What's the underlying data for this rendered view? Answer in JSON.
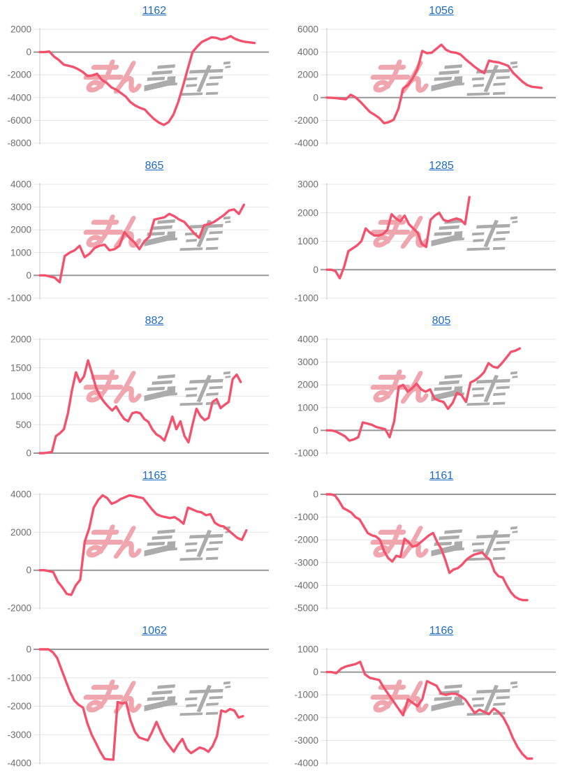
{
  "page": {
    "description": "Grid of 10 machine slump graphs, each titled by a machine number link",
    "watermark": {
      "text_pink": "みん",
      "text_gray": "レポ",
      "style": "stylized italic speed-line logo"
    }
  },
  "colors": {
    "line": "#F4516C",
    "title_link": "#1F6BC4",
    "grid_line": "#E4E4E4",
    "zero_line": "#969696",
    "axis_line": "#C9C9C9",
    "tick_label": "#6E6E6E",
    "watermark_pink": "#EFA6AF",
    "watermark_gray": "#ABABAB",
    "background": "#FFFFFF"
  },
  "chart_data": [
    {
      "type": "line",
      "title": "1162",
      "xlabel": "",
      "ylabel": "",
      "ylim": [
        -8000,
        2000
      ],
      "ystep": 2000,
      "grid": "horizontal",
      "legend": "none",
      "x_slots": 49,
      "values": [
        0,
        0,
        50,
        -400,
        -700,
        -1100,
        -1200,
        -1300,
        -1500,
        -1750,
        -2100,
        -2050,
        -1900,
        -2450,
        -2700,
        -3100,
        -3300,
        -3600,
        -3900,
        -4400,
        -4700,
        -4900,
        -5050,
        -5500,
        -5900,
        -6200,
        -6400,
        -6150,
        -5500,
        -4400,
        -3000,
        -1500,
        0,
        500,
        900,
        1100,
        1300,
        1250,
        1100,
        1200,
        1400,
        1150,
        1000,
        900,
        850,
        800
      ]
    },
    {
      "type": "line",
      "title": "1056",
      "xlabel": "",
      "ylabel": "",
      "ylim": [
        -4000,
        6000
      ],
      "ystep": 2000,
      "grid": "horizontal",
      "legend": "none",
      "x_slots": 49,
      "values": [
        0,
        -20,
        -50,
        -100,
        -150,
        250,
        30,
        -350,
        -800,
        -1250,
        -1500,
        -1800,
        -2250,
        -2150,
        -1950,
        -1000,
        800,
        1100,
        1700,
        2500,
        4100,
        3900,
        3950,
        4300,
        4650,
        4200,
        4000,
        3950,
        3800,
        3400,
        3050,
        2700,
        2400,
        2150,
        3250,
        3150,
        3100,
        2950,
        2800,
        2200,
        1800,
        1400,
        1100,
        950,
        900,
        850
      ]
    },
    {
      "type": "line",
      "title": "865",
      "xlabel": "",
      "ylabel": "",
      "ylim": [
        -1000,
        4000
      ],
      "ystep": 1000,
      "grid": "horizontal",
      "legend": "none",
      "x_slots": 47,
      "values": [
        0,
        0,
        -50,
        -100,
        -300,
        850,
        1000,
        1100,
        1300,
        800,
        950,
        1200,
        1300,
        1350,
        1100,
        1150,
        1300,
        1900,
        1650,
        1450,
        1150,
        1500,
        1700,
        2450,
        2500,
        2550,
        2700,
        2600,
        2450,
        2350,
        2100,
        1850,
        1650,
        2200,
        2250,
        2350,
        2500,
        2650,
        2850,
        2900,
        2700,
        3100
      ]
    },
    {
      "type": "line",
      "title": "1285",
      "xlabel": "",
      "ylabel": "",
      "ylim": [
        -1000,
        3000
      ],
      "ystep": 1000,
      "grid": "horizontal",
      "legend": "none",
      "x_slots": 54,
      "values": [
        0,
        0,
        -50,
        -300,
        100,
        650,
        750,
        850,
        1000,
        1450,
        1300,
        1200,
        1200,
        1250,
        1400,
        1950,
        1800,
        1700,
        1900,
        1600,
        1450,
        1300,
        900,
        800,
        1750,
        1900,
        2000,
        1750,
        1700,
        1750,
        1800,
        1750,
        1600,
        2550
      ]
    },
    {
      "type": "line",
      "title": "882",
      "xlabel": "",
      "ylabel": "",
      "ylim": [
        0,
        2000
      ],
      "ystep": 500,
      "grid": "horizontal",
      "legend": "none",
      "x_slots": 58,
      "values": [
        0,
        0,
        10,
        20,
        300,
        350,
        420,
        700,
        1100,
        1420,
        1250,
        1350,
        1630,
        1400,
        1150,
        1000,
        900,
        820,
        750,
        820,
        700,
        600,
        560,
        700,
        720,
        700,
        600,
        550,
        420,
        330,
        290,
        220,
        420,
        640,
        420,
        560,
        300,
        190,
        500,
        780,
        650,
        580,
        620,
        900,
        950,
        790,
        850,
        900,
        1300,
        1380,
        1250
      ]
    },
    {
      "type": "line",
      "title": "805",
      "xlabel": "",
      "ylabel": "",
      "ylim": [
        -1000,
        4000
      ],
      "ystep": 1000,
      "grid": "horizontal",
      "legend": "none",
      "x_slots": 52,
      "values": [
        0,
        0,
        -50,
        -150,
        -250,
        -450,
        -400,
        -300,
        350,
        300,
        250,
        150,
        100,
        50,
        -300,
        400,
        1900,
        2000,
        1700,
        1850,
        2050,
        1800,
        1700,
        1800,
        1400,
        1300,
        1250,
        950,
        1200,
        1650,
        1550,
        1250,
        2100,
        2200,
        2350,
        2550,
        2950,
        2800,
        2750,
        2950,
        3200,
        3450,
        3500,
        3600
      ]
    },
    {
      "type": "line",
      "title": "1165",
      "xlabel": "",
      "ylabel": "",
      "ylim": [
        -2000,
        4000
      ],
      "ystep": 2000,
      "grid": "horizontal",
      "legend": "none",
      "x_slots": 52,
      "values": [
        0,
        0,
        -50,
        -100,
        -600,
        -900,
        -1250,
        -1300,
        -800,
        -500,
        1500,
        2200,
        3300,
        3700,
        3950,
        3800,
        3500,
        3600,
        3750,
        3850,
        3950,
        3900,
        3850,
        3800,
        3500,
        3200,
        2950,
        2850,
        2800,
        2750,
        2800,
        2650,
        2450,
        3300,
        3200,
        3100,
        3050,
        2900,
        2950,
        2500,
        2350,
        2300,
        2100,
        1900,
        1700,
        1600,
        2100
      ]
    },
    {
      "type": "line",
      "title": "1161",
      "xlabel": "",
      "ylabel": "",
      "ylim": [
        -5000,
        0
      ],
      "ystep": 1000,
      "grid": "horizontal",
      "legend": "none",
      "x_slots": 57,
      "values": [
        0,
        0,
        -50,
        -300,
        -600,
        -700,
        -800,
        -1000,
        -1100,
        -1400,
        -1700,
        -1800,
        -1850,
        -2000,
        -2500,
        -2800,
        -2950,
        -2700,
        -2750,
        -1950,
        -2100,
        -2300,
        -2250,
        -2100,
        -1950,
        -1800,
        -1700,
        -2100,
        -2400,
        -2900,
        -3450,
        -3300,
        -3250,
        -3100,
        -2900,
        -2750,
        -2650,
        -2600,
        -2550,
        -2750,
        -2900,
        -3400,
        -3600,
        -3650,
        -4000,
        -4300,
        -4500,
        -4600,
        -4650,
        -4650
      ]
    },
    {
      "type": "line",
      "title": "1062",
      "xlabel": "",
      "ylabel": "",
      "ylim": [
        -4000,
        0
      ],
      "ystep": 1000,
      "grid": "horizontal",
      "legend": "none",
      "x_slots": 54,
      "values": [
        0,
        0,
        0,
        -100,
        -300,
        -700,
        -1100,
        -1500,
        -1800,
        -1950,
        -2050,
        -2600,
        -3000,
        -3300,
        -3600,
        -3850,
        -3870,
        -3880,
        -1850,
        -1900,
        -1870,
        -2500,
        -2900,
        -3100,
        -3150,
        -3200,
        -2900,
        -2550,
        -2900,
        -3200,
        -3400,
        -3600,
        -3350,
        -3150,
        -3500,
        -3650,
        -3550,
        -3450,
        -3500,
        -3600,
        -3400,
        -3050,
        -2150,
        -2200,
        -2100,
        -2150,
        -2400,
        -2350
      ]
    },
    {
      "type": "line",
      "title": "1166",
      "xlabel": "",
      "ylabel": "",
      "ylim": [
        -4000,
        1000
      ],
      "ystep": 1000,
      "grid": "horizontal",
      "legend": "none",
      "x_slots": 49,
      "values": [
        0,
        0,
        -50,
        150,
        250,
        300,
        350,
        450,
        -100,
        -250,
        -300,
        -350,
        -700,
        -1000,
        -1300,
        -1600,
        -1900,
        -1200,
        -1350,
        -1500,
        -1200,
        -400,
        -500,
        -600,
        -950,
        -1000,
        -950,
        -950,
        -1050,
        -1200,
        -1500,
        -1800,
        -1650,
        -1750,
        -1850,
        -1600,
        -1750,
        -2000,
        -2400,
        -2900,
        -3300,
        -3600,
        -3800,
        -3800
      ]
    }
  ]
}
